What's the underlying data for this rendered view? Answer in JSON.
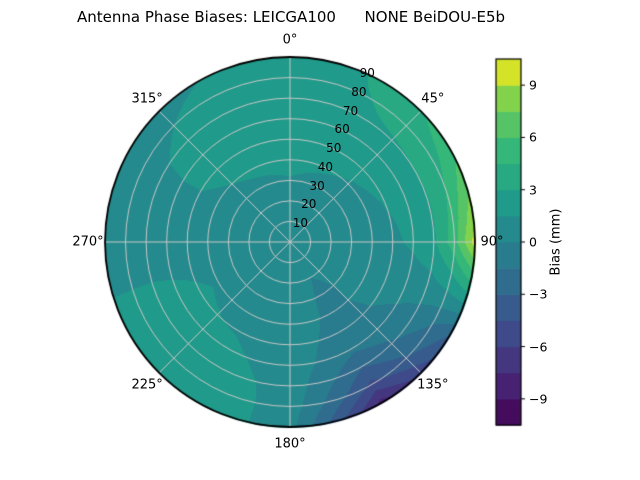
{
  "title": "Antenna Phase Biases: LEICGA100      NONE BeiDOU-E5b",
  "chart_data": {
    "type": "heatmap",
    "projection": "polar",
    "title": "Antenna Phase Biases: LEICGA100      NONE BeiDOU-E5b",
    "grid": true,
    "grid_color": "#c8c8c8",
    "azimuth_tick_labels": [
      "0°",
      "45°",
      "90°",
      "135°",
      "180°",
      "225°",
      "270°",
      "315°"
    ],
    "azimuth_tick_deg": [
      0,
      45,
      90,
      135,
      180,
      225,
      270,
      315
    ],
    "radial_tick_labels": [
      "10",
      "20",
      "30",
      "40",
      "50",
      "60",
      "70",
      "80",
      "90"
    ],
    "radial_ticks_zenith_deg": [
      10,
      20,
      30,
      40,
      50,
      60,
      70,
      80,
      90
    ],
    "azimuth_deg": [
      0,
      30,
      60,
      90,
      120,
      150,
      180,
      210,
      240,
      270,
      300,
      330
    ],
    "zenith_deg": [
      0,
      10,
      20,
      30,
      40,
      50,
      60,
      70,
      80,
      90
    ],
    "values_mm": [
      [
        0.2,
        0.2,
        0.2,
        0.2,
        0.2,
        0.2,
        0.2,
        0.2,
        0.2,
        0.2,
        0.2,
        0.2
      ],
      [
        0.5,
        0.4,
        0.3,
        0.2,
        0.1,
        0.1,
        0.2,
        0.3,
        0.4,
        0.4,
        0.4,
        0.5
      ],
      [
        0.9,
        0.7,
        0.5,
        0.3,
        0.1,
        0.0,
        0.3,
        0.5,
        0.7,
        0.6,
        0.7,
        0.8
      ],
      [
        1.4,
        1.1,
        0.8,
        0.5,
        0.1,
        -0.1,
        0.4,
        0.8,
        1.0,
        0.8,
        1.0,
        1.2
      ],
      [
        1.9,
        1.6,
        1.2,
        0.8,
        0.2,
        -0.2,
        0.5,
        1.1,
        1.4,
        0.9,
        1.3,
        1.7
      ],
      [
        2.4,
        2.1,
        1.7,
        1.2,
        0.2,
        -0.5,
        0.6,
        1.4,
        1.7,
        0.9,
        1.5,
        2.1
      ],
      [
        2.7,
        2.5,
        2.3,
        1.8,
        0.0,
        -1.2,
        0.8,
        1.8,
        2.0,
        0.8,
        1.5,
        2.3
      ],
      [
        2.8,
        2.8,
        3.0,
        2.8,
        -0.5,
        -3.0,
        0.9,
        2.2,
        2.2,
        0.7,
        1.4,
        2.4
      ],
      [
        2.5,
        3.0,
        4.0,
        5.5,
        -1.5,
        -5.0,
        0.8,
        2.5,
        2.4,
        0.4,
        1.0,
        2.0
      ],
      [
        2.0,
        3.2,
        5.5,
        9.8,
        -3.0,
        -8.2,
        0.5,
        2.8,
        2.6,
        0.0,
        0.6,
        1.5
      ]
    ],
    "vmin": -10.5,
    "vmax": 10.5,
    "level_step_mm": 1.5,
    "colorbar": {
      "label": "Bias (mm)",
      "ticks": [
        9,
        6,
        3,
        0,
        -3,
        -6,
        -9
      ],
      "tick_labels": [
        "9",
        "6",
        "3",
        "0",
        "−3",
        "−6",
        "−9"
      ]
    },
    "colormap": {
      "name": "viridis",
      "stops": [
        {
          "t": 0.0,
          "color": "#440154"
        },
        {
          "t": 0.125,
          "color": "#482878"
        },
        {
          "t": 0.25,
          "color": "#3e4a89"
        },
        {
          "t": 0.375,
          "color": "#31688e"
        },
        {
          "t": 0.5,
          "color": "#26828e"
        },
        {
          "t": 0.625,
          "color": "#1f9e89"
        },
        {
          "t": 0.75,
          "color": "#35b779"
        },
        {
          "t": 0.875,
          "color": "#6ece58"
        },
        {
          "t": 0.9375,
          "color": "#b5de2b"
        },
        {
          "t": 1.0,
          "color": "#fde725"
        }
      ]
    }
  }
}
